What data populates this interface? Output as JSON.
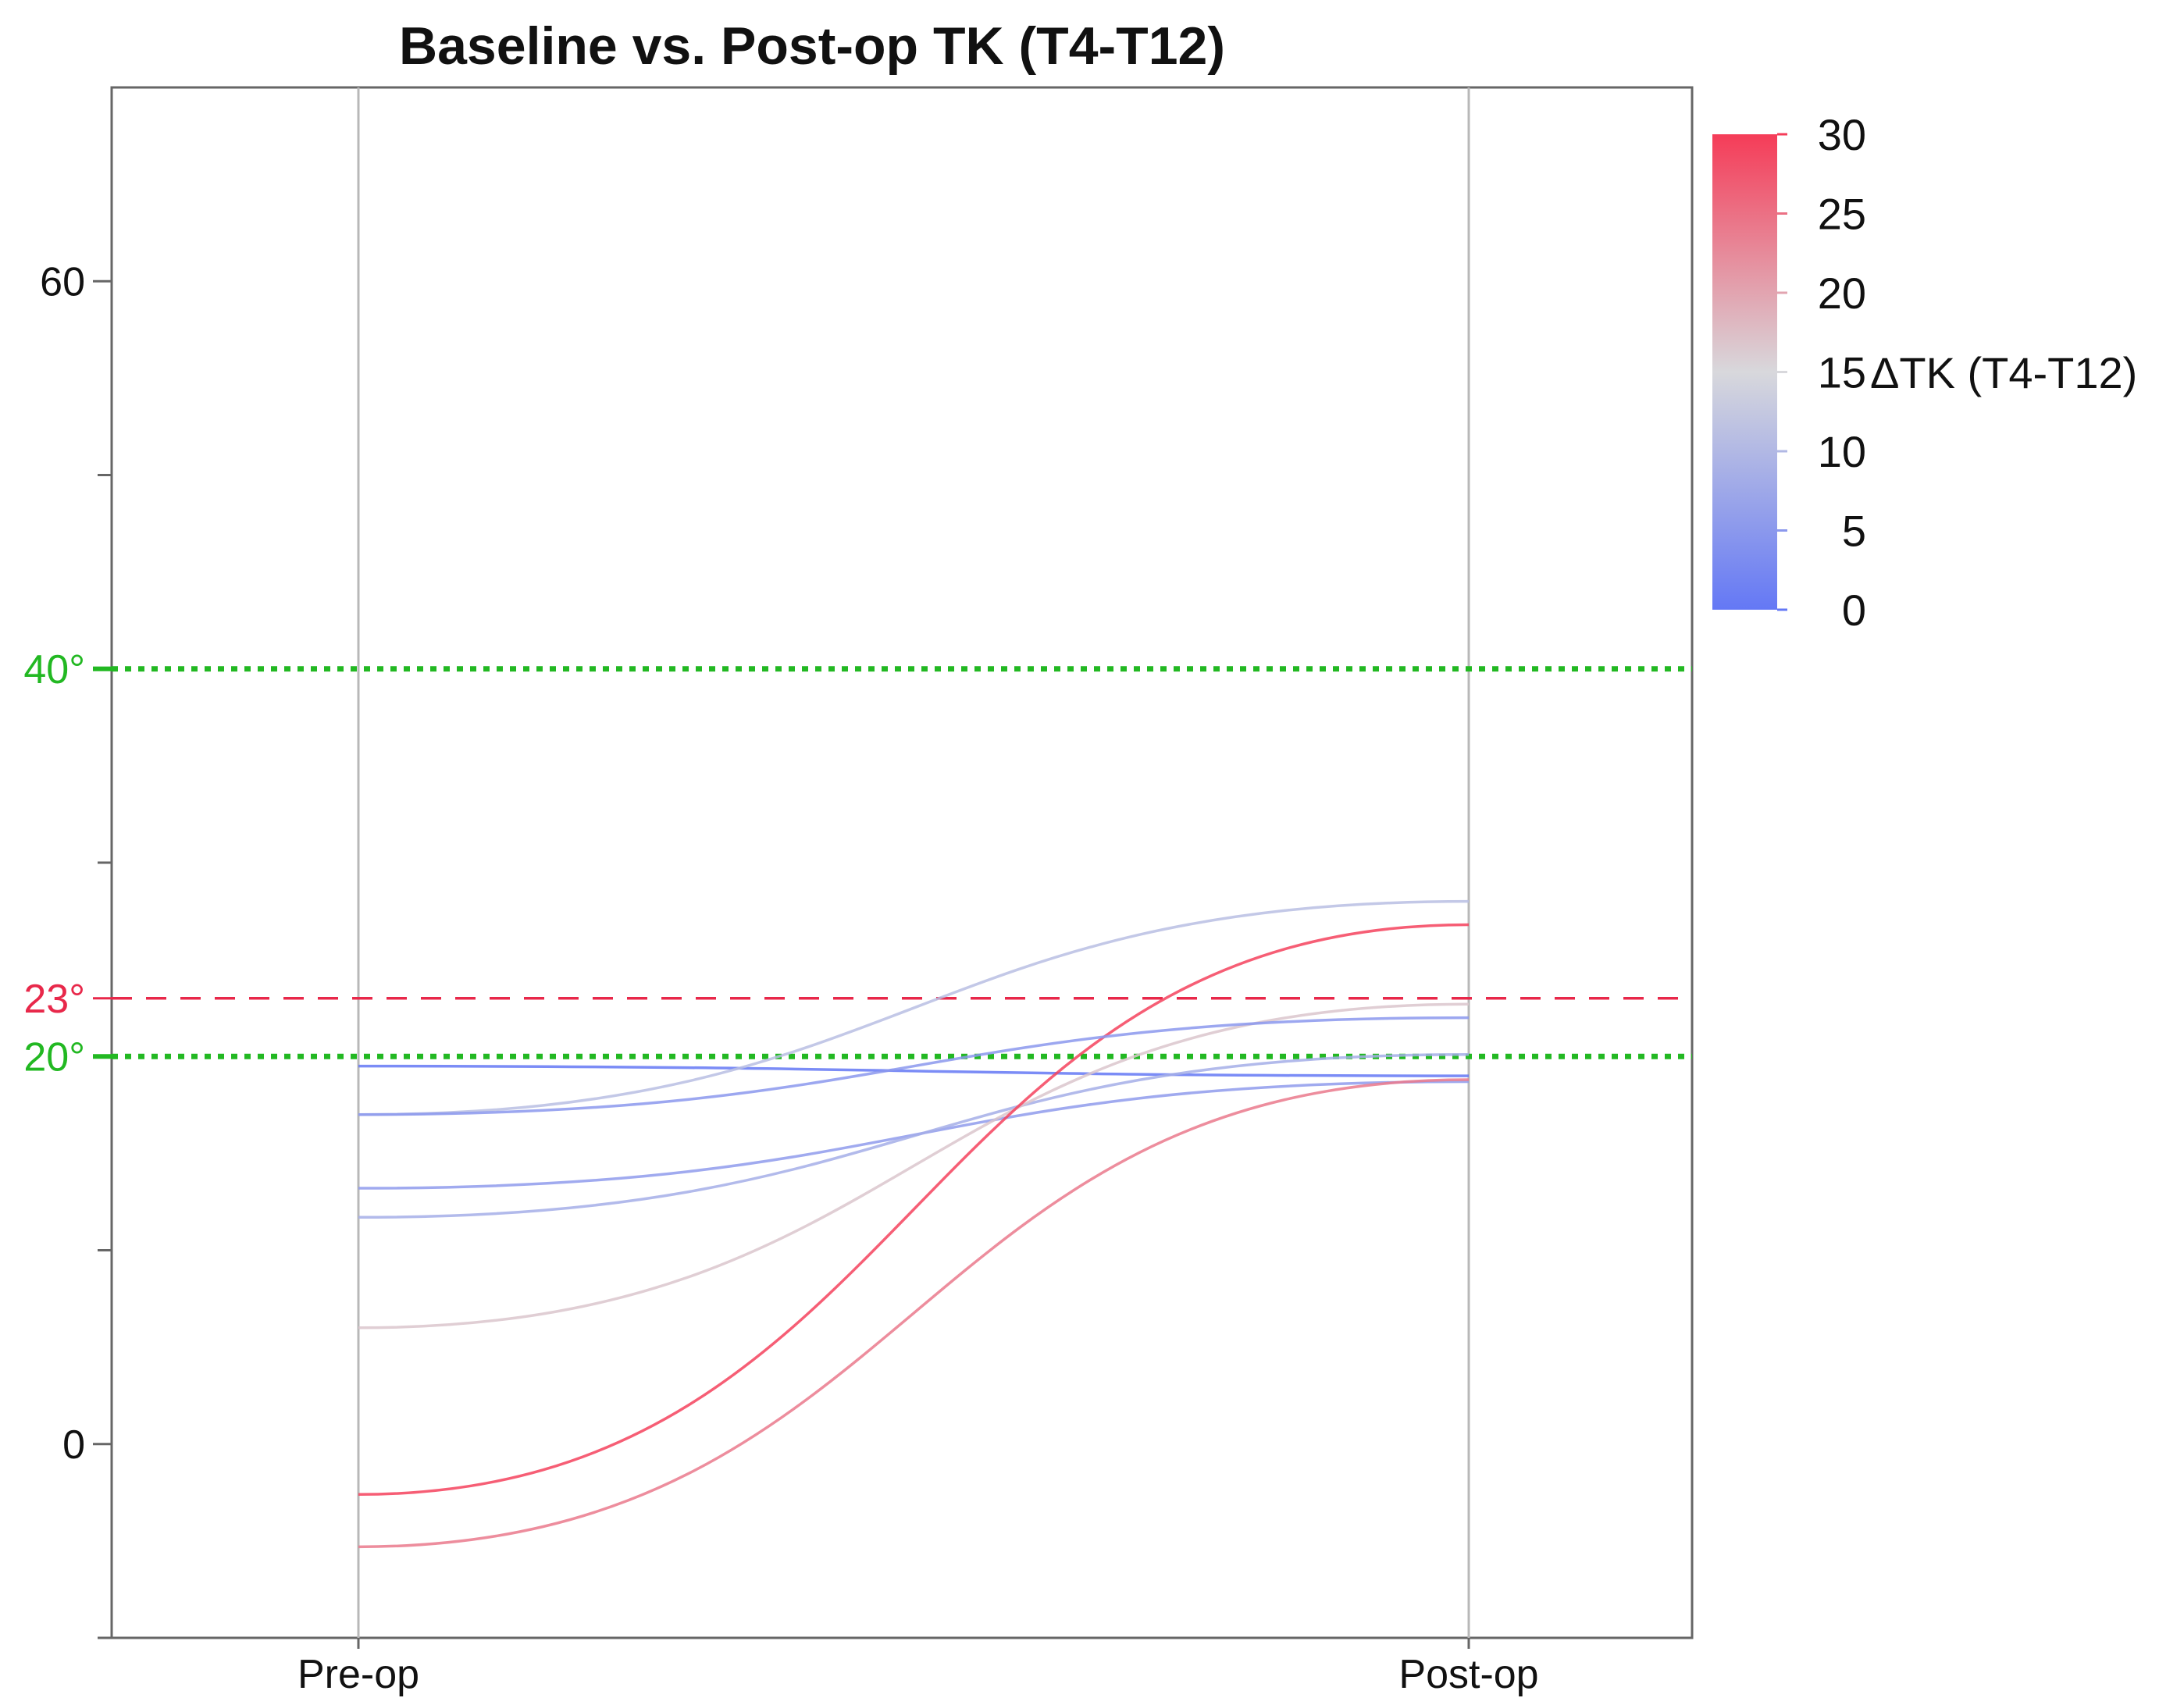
{
  "chart_data": {
    "type": "line",
    "title": "Baseline vs. Post-op TK (T4-T12)",
    "categories": [
      "Pre-op",
      "Post-op"
    ],
    "ylim": [
      -10,
      70
    ],
    "y_ticks": [
      0,
      60
    ],
    "y_minor_ticks": [
      -10,
      10,
      30,
      50
    ],
    "reference_lines": [
      {
        "value": 40,
        "label": "40°",
        "color": "#22b822",
        "style": "dotted"
      },
      {
        "value": 23,
        "label": "23°",
        "color": "#e8284a",
        "style": "dashed"
      },
      {
        "value": 20,
        "label": "20°",
        "color": "#22b822",
        "style": "dotted"
      }
    ],
    "series": [
      {
        "values": [
          19.5,
          19.0
        ],
        "delta": -0.5
      },
      {
        "values": [
          17.0,
          28.0
        ],
        "delta": 11.0
      },
      {
        "values": [
          13.2,
          18.7
        ],
        "delta": 5.5
      },
      {
        "values": [
          11.7,
          20.1
        ],
        "delta": 8.4
      },
      {
        "values": [
          6.0,
          22.7
        ],
        "delta": 16.7
      },
      {
        "values": [
          -2.6,
          26.8
        ],
        "delta": 29.4
      },
      {
        "values": [
          -5.3,
          18.8
        ],
        "delta": 24.1
      },
      {
        "values": [
          17.0,
          22.0
        ],
        "delta": 5.0
      }
    ],
    "colorbar": {
      "label": "ΔTK (T4-T12)",
      "min": 0,
      "max": 30,
      "ticks": [
        "0",
        "5",
        "10",
        "15",
        "20",
        "25",
        "30"
      ],
      "colors": [
        "#6478f5",
        "#d8d8dc",
        "#f53c58"
      ]
    },
    "grid": false
  }
}
